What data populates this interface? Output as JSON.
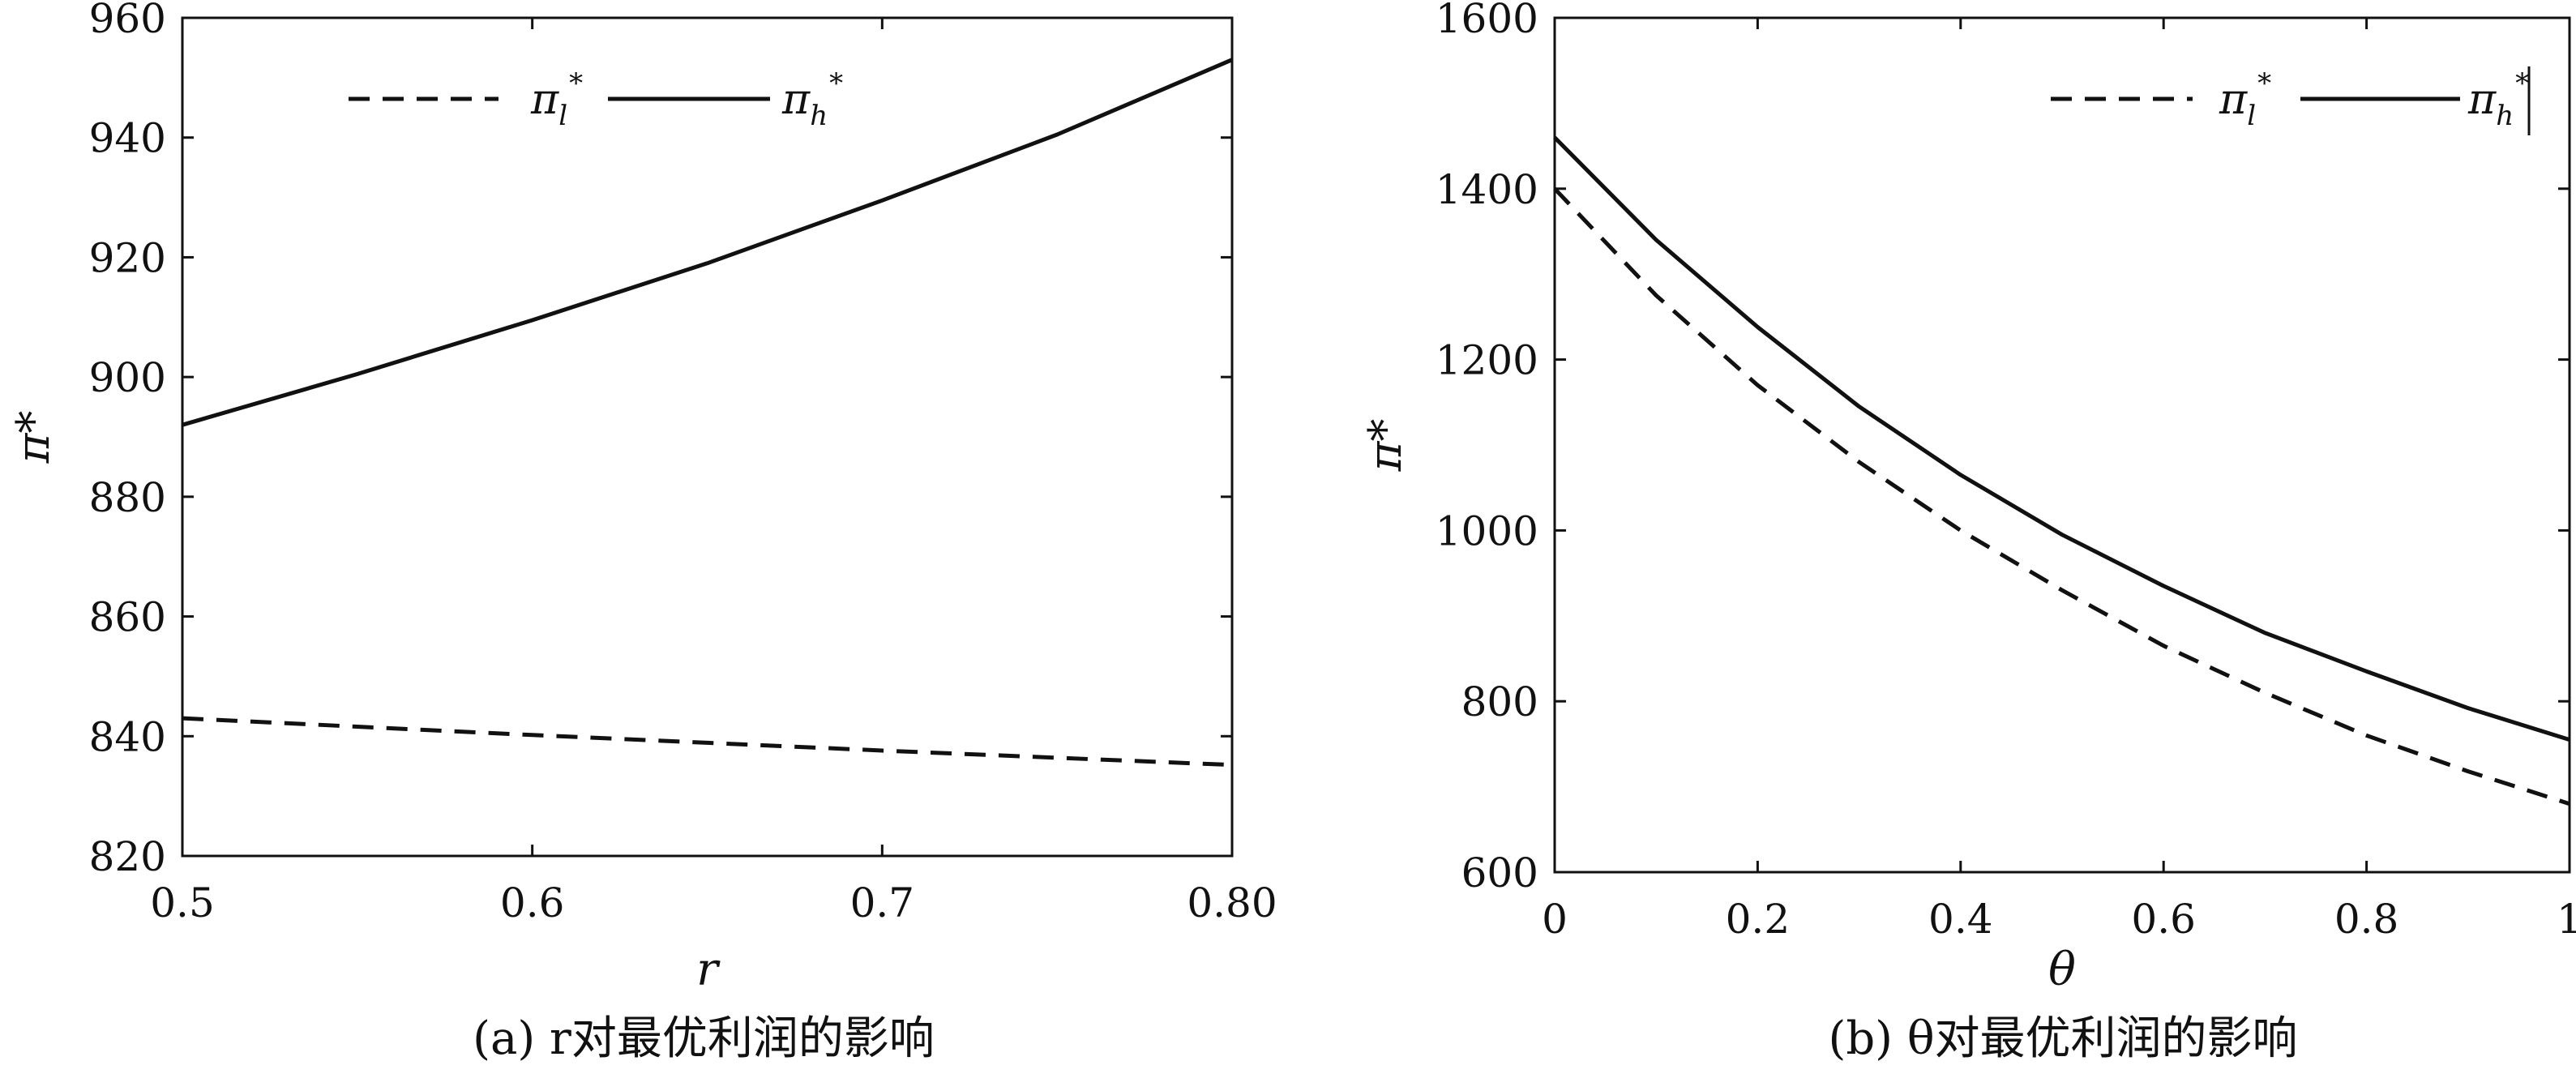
{
  "chart_data": [
    {
      "type": "line",
      "caption": "(a) r对最优利润的影响",
      "xlabel": "r",
      "ylabel": "π*",
      "xlim": [
        0.5,
        0.8
      ],
      "ylim": [
        820,
        960
      ],
      "xticks": [
        0.5,
        0.6,
        0.7,
        0.8
      ],
      "xtick_labels": [
        "0.5",
        "0.6",
        "0.7",
        "0.80"
      ],
      "yticks": [
        820,
        840,
        860,
        880,
        900,
        920,
        940,
        960
      ],
      "ytick_labels": [
        "820",
        "840",
        "860",
        "880",
        "900",
        "920",
        "940",
        "960"
      ],
      "legend_position": "top",
      "series": [
        {
          "name": "π_l*",
          "legend_main": "π",
          "legend_sub": "l",
          "legend_sup": "*",
          "style": "dashed",
          "x": [
            0.5,
            0.55,
            0.6,
            0.65,
            0.7,
            0.75,
            0.8
          ],
          "y": [
            843,
            841.6,
            840.2,
            838.9,
            837.6,
            836.4,
            835.2
          ]
        },
        {
          "name": "π_h*",
          "legend_main": "π",
          "legend_sub": "h",
          "legend_sup": "*",
          "style": "solid",
          "x": [
            0.5,
            0.55,
            0.6,
            0.65,
            0.7,
            0.75,
            0.8
          ],
          "y": [
            892,
            900.5,
            909.5,
            919,
            929.5,
            940.5,
            953
          ]
        }
      ]
    },
    {
      "type": "line",
      "caption": "(b) θ对最优利润的影响",
      "xlabel": "θ",
      "ylabel": "π*",
      "xlim": [
        0,
        1
      ],
      "ylim": [
        600,
        1600
      ],
      "xticks": [
        0,
        0.2,
        0.4,
        0.6,
        0.8,
        1
      ],
      "xtick_labels": [
        "0",
        "0.2",
        "0.4",
        "0.6",
        "0.8",
        "1"
      ],
      "yticks": [
        600,
        800,
        1000,
        1200,
        1400,
        1600
      ],
      "ytick_labels": [
        "600",
        "800",
        "1000",
        "1200",
        "1400",
        "1600"
      ],
      "legend_position": "top-right",
      "series": [
        {
          "name": "π_l*",
          "legend_main": "π",
          "legend_sub": "l",
          "legend_sup": "*",
          "style": "dashed",
          "x": [
            0,
            0.1,
            0.2,
            0.3,
            0.4,
            0.5,
            0.6,
            0.7,
            0.8,
            0.9,
            1.0
          ],
          "y": [
            1400,
            1275,
            1170,
            1080,
            1000,
            930,
            865,
            810,
            760,
            718,
            680
          ]
        },
        {
          "name": "π_h*",
          "legend_main": "π",
          "legend_sub": "h",
          "legend_sup": "*",
          "style": "solid",
          "x": [
            0,
            0.1,
            0.2,
            0.3,
            0.4,
            0.5,
            0.6,
            0.7,
            0.8,
            0.9,
            1.0
          ],
          "y": [
            1460,
            1340,
            1238,
            1145,
            1065,
            995,
            935,
            880,
            835,
            792,
            755
          ]
        }
      ]
    }
  ]
}
